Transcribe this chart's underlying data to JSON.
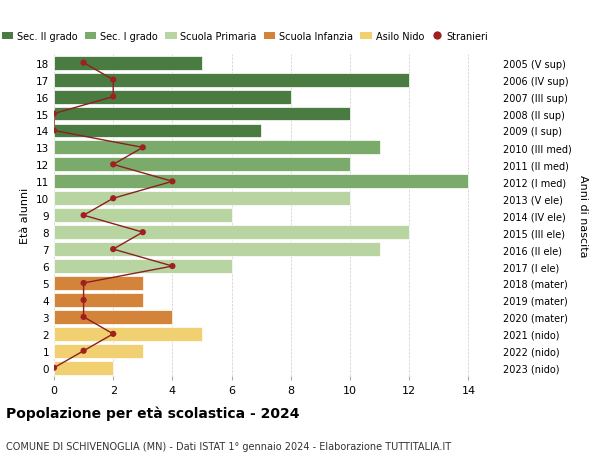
{
  "ages": [
    0,
    1,
    2,
    3,
    4,
    5,
    6,
    7,
    8,
    9,
    10,
    11,
    12,
    13,
    14,
    15,
    16,
    17,
    18
  ],
  "years": [
    "2023 (nido)",
    "2022 (nido)",
    "2021 (nido)",
    "2020 (mater)",
    "2019 (mater)",
    "2018 (mater)",
    "2017 (I ele)",
    "2016 (II ele)",
    "2015 (III ele)",
    "2014 (IV ele)",
    "2013 (V ele)",
    "2012 (I med)",
    "2011 (II med)",
    "2010 (III med)",
    "2009 (I sup)",
    "2008 (II sup)",
    "2007 (III sup)",
    "2006 (IV sup)",
    "2005 (V sup)"
  ],
  "bar_values": [
    2,
    3,
    5,
    4,
    3,
    3,
    6,
    11,
    12,
    6,
    10,
    14,
    10,
    11,
    7,
    10,
    8,
    12,
    5
  ],
  "bar_colors": [
    "#f0d070",
    "#f0d070",
    "#f0d070",
    "#d4843a",
    "#d4843a",
    "#d4843a",
    "#b8d4a0",
    "#b8d4a0",
    "#b8d4a0",
    "#b8d4a0",
    "#b8d4a0",
    "#7aab6a",
    "#7aab6a",
    "#7aab6a",
    "#4a7c42",
    "#4a7c42",
    "#4a7c42",
    "#4a7c42",
    "#4a7c42"
  ],
  "stranieri_values": [
    0,
    1,
    2,
    1,
    1,
    1,
    4,
    2,
    3,
    1,
    2,
    4,
    2,
    3,
    0,
    0,
    2,
    2,
    1
  ],
  "title": "Popolazione per età scolastica - 2024",
  "subtitle": "COMUNE DI SCHIVENOGLIA (MN) - Dati ISTAT 1° gennaio 2024 - Elaborazione TUTTITALIA.IT",
  "ylabel": "Età alunni",
  "right_label": "Anni di nascita",
  "xlim": [
    0,
    15
  ],
  "xticks": [
    0,
    2,
    4,
    6,
    8,
    10,
    12,
    14
  ],
  "legend_labels": [
    "Sec. II grado",
    "Sec. I grado",
    "Scuola Primaria",
    "Scuola Infanzia",
    "Asilo Nido",
    "Stranieri"
  ],
  "legend_colors": [
    "#4a7c42",
    "#7aab6a",
    "#b8d4a0",
    "#d4843a",
    "#f0d070",
    "#a02020"
  ],
  "stranieri_color": "#a02020",
  "stranieri_line_color": "#8b2020",
  "grid_color": "#cccccc",
  "bg_color": "#ffffff"
}
